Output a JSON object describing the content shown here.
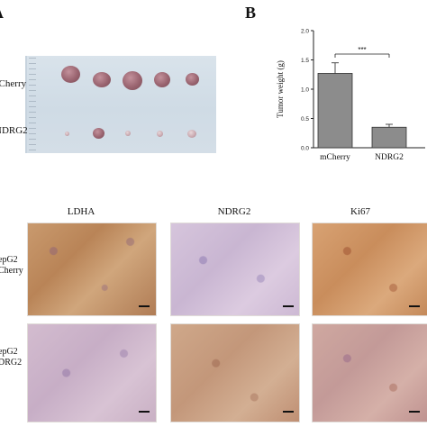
{
  "panel_labels": {
    "a_partial": "A",
    "b": "B"
  },
  "tumor_photo": {
    "row_labels": [
      "mCherry",
      "NDRG2"
    ]
  },
  "chart_data": {
    "type": "bar",
    "categories": [
      "mCherry",
      "NDRG2"
    ],
    "values": [
      1.27,
      0.35
    ],
    "errors": [
      0.18,
      0.05
    ],
    "ylabel": "Tumor weight (g)",
    "ylim": [
      0,
      2.0
    ],
    "yticks": [
      "0.0",
      "0.5",
      "1.0",
      "1.5",
      "2.0"
    ],
    "significance": "***",
    "bar_color": "#8c8c8c"
  },
  "ihc": {
    "columns": [
      "LDHA",
      "NDRG2",
      "Ki67"
    ],
    "rows": [
      {
        "line1": "epG2",
        "line2": "Cherry"
      },
      {
        "line1": "epG2",
        "line2": "DRG2"
      }
    ]
  }
}
